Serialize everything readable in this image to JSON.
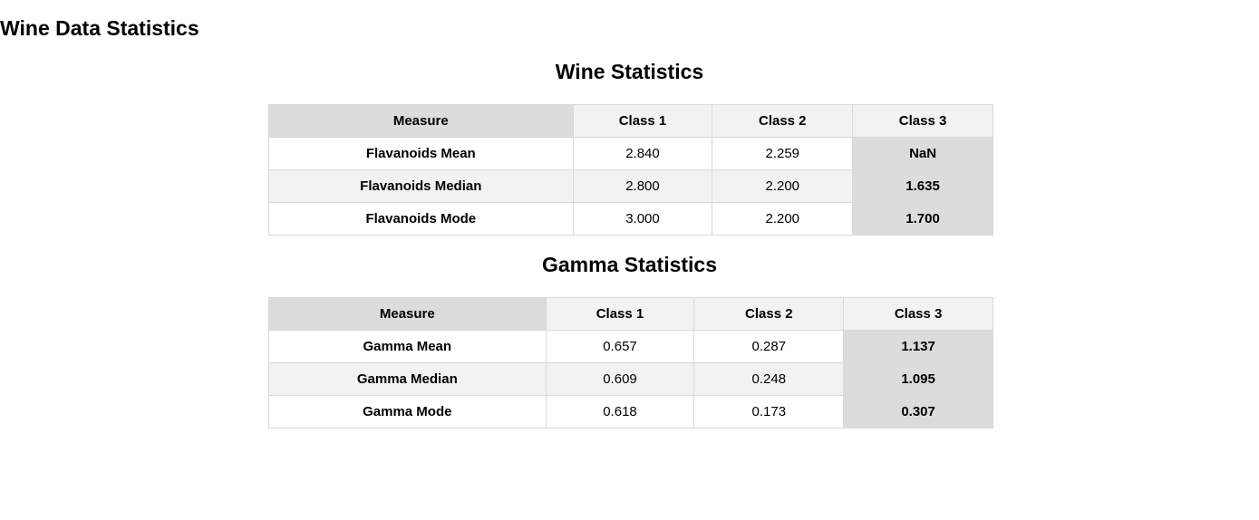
{
  "page": {
    "title": "Wine Data Statistics"
  },
  "wine_table": {
    "title": "Wine Statistics",
    "headers": [
      "Measure",
      "Class 1",
      "Class 2",
      "Class 3"
    ],
    "rows": [
      {
        "measure": "Flavanoids Mean",
        "class1": "2.840",
        "class2": "2.259",
        "class3": "NaN"
      },
      {
        "measure": "Flavanoids Median",
        "class1": "2.800",
        "class2": "2.200",
        "class3": "1.635"
      },
      {
        "measure": "Flavanoids Mode",
        "class1": "3.000",
        "class2": "2.200",
        "class3": "1.700"
      }
    ]
  },
  "gamma_table": {
    "title": "Gamma Statistics",
    "headers": [
      "Measure",
      "Class 1",
      "Class 2",
      "Class 3"
    ],
    "rows": [
      {
        "measure": "Gamma Mean",
        "class1": "0.657",
        "class2": "0.287",
        "class3": "1.137"
      },
      {
        "measure": "Gamma Median",
        "class1": "0.609",
        "class2": "0.248",
        "class3": "1.095"
      },
      {
        "measure": "Gamma Mode",
        "class1": "0.618",
        "class2": "0.173",
        "class3": "0.307"
      }
    ]
  }
}
